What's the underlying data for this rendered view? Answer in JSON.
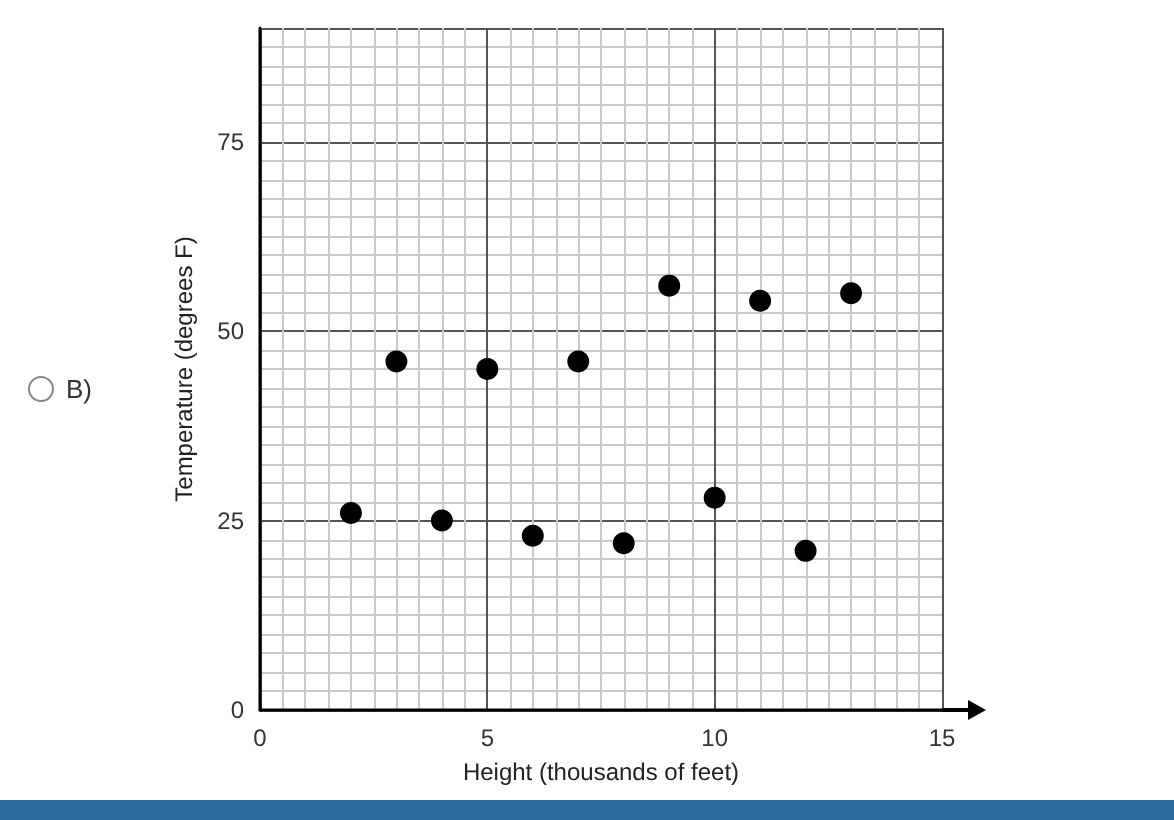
{
  "chart_data": {
    "type": "scatter",
    "xlabel": "Height (thousands of feet)",
    "ylabel": "Temperature (degrees F)",
    "annotations": [
      "B)"
    ],
    "x": [
      2,
      3,
      4,
      5,
      6,
      7,
      8,
      9,
      10,
      11,
      12,
      13
    ],
    "series": [
      {
        "color": "#000000",
        "values": [
          26,
          46,
          25,
          45,
          23,
          46,
          22,
          56,
          28,
          54,
          21,
          55
        ]
      }
    ],
    "xlim": [
      0,
      15
    ],
    "ylim": [
      0,
      90
    ],
    "xticks": [
      0,
      5,
      10,
      15
    ],
    "yticks": [
      0,
      25,
      50,
      75
    ],
    "grid": true,
    "marker": "circle"
  }
}
